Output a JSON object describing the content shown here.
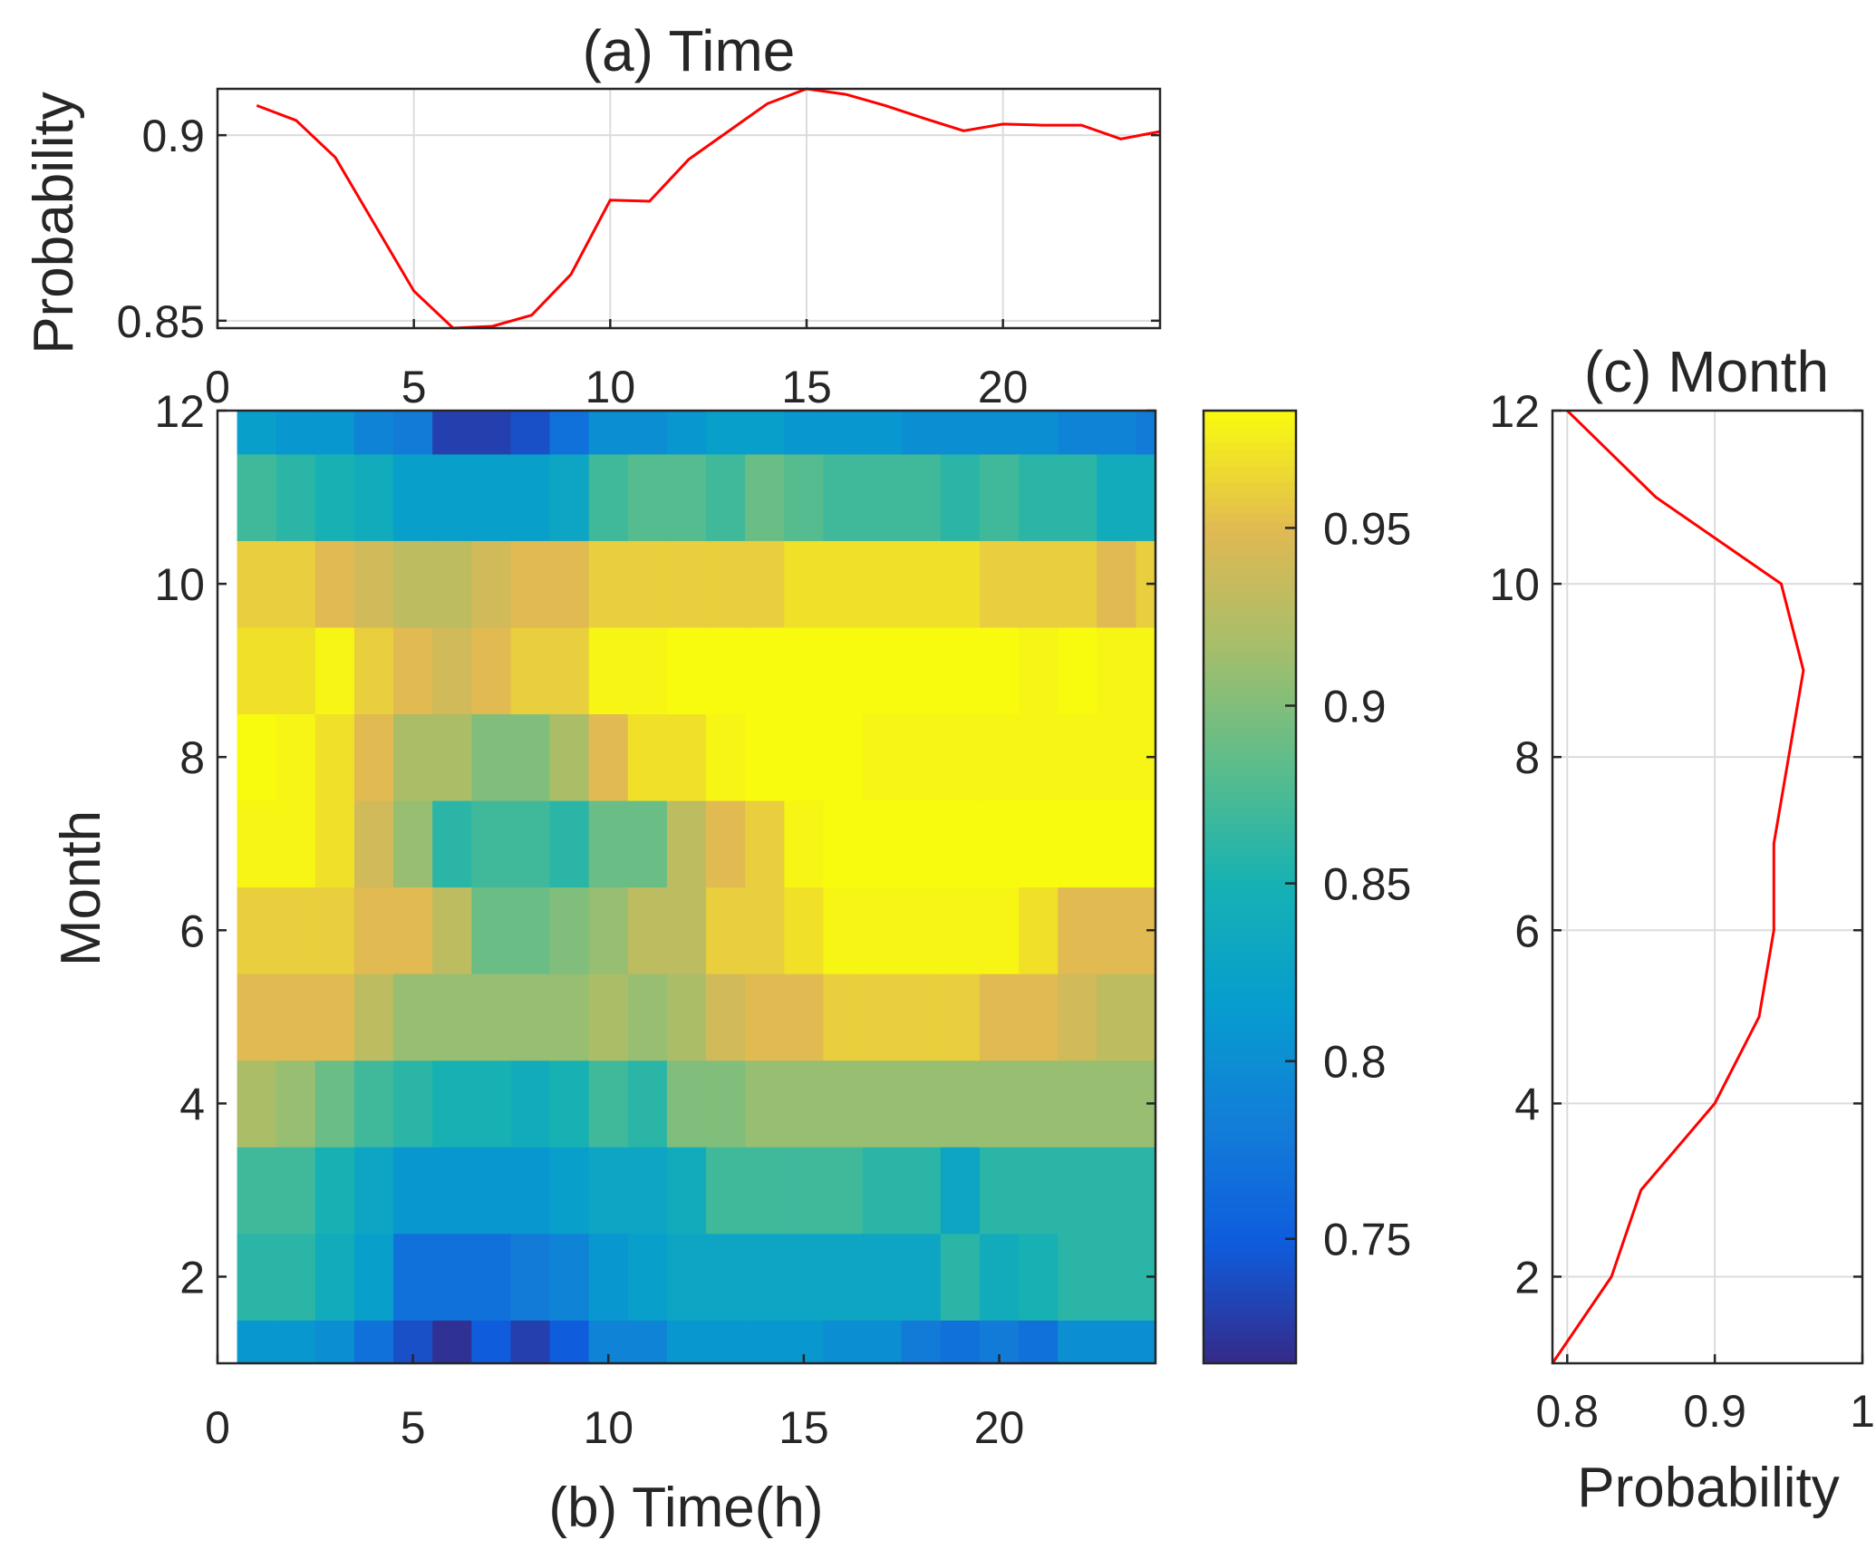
{
  "chart_data": [
    {
      "id": "a",
      "type": "line",
      "title": "(a) Time",
      "xlabel": "",
      "ylabel": "Probability",
      "xlim": [
        0,
        24
      ],
      "ylim": [
        0.848,
        0.9125
      ],
      "xticks": [
        0,
        5,
        10,
        15,
        20
      ],
      "xtick_labels": [
        "0",
        "5",
        "10",
        "15",
        "20"
      ],
      "yticks": [
        0.85,
        0.9
      ],
      "ytick_labels": [
        "0.85",
        "0.9"
      ],
      "grid": true,
      "series": [
        {
          "name": "Time",
          "color": "#ff0000",
          "x": [
            1,
            2,
            3,
            4,
            5,
            6,
            7,
            8,
            9,
            10,
            11,
            12,
            13,
            14,
            15,
            16,
            17,
            18,
            19,
            20,
            21,
            22,
            23,
            24
          ],
          "y": [
            0.908,
            0.904,
            0.894,
            0.876,
            0.858,
            0.848,
            0.8485,
            0.8515,
            0.8625,
            0.8825,
            0.8822,
            0.8935,
            0.901,
            0.9085,
            0.9125,
            0.911,
            0.908,
            0.9045,
            0.9012,
            0.903,
            0.9027,
            0.9027,
            0.899,
            0.901
          ]
        }
      ]
    },
    {
      "id": "b",
      "type": "heatmap",
      "title": "",
      "xlabel": "(b) Time(h)",
      "ylabel": "Month",
      "xlim": [
        0,
        24
      ],
      "ylim": [
        1,
        12
      ],
      "xticks": [
        0,
        5,
        10,
        15,
        20
      ],
      "xtick_labels": [
        "0",
        "5",
        "10",
        "15",
        "20"
      ],
      "yticks": [
        2,
        4,
        6,
        8,
        10,
        12
      ],
      "ytick_labels": [
        "2",
        "4",
        "6",
        "8",
        "10",
        "12"
      ],
      "x": [
        1,
        2,
        3,
        4,
        5,
        6,
        7,
        8,
        9,
        10,
        11,
        12,
        13,
        14,
        15,
        16,
        17,
        18,
        19,
        20,
        21,
        22,
        23,
        24
      ],
      "y": [
        1,
        2,
        3,
        4,
        5,
        6,
        7,
        8,
        9,
        10,
        11,
        12
      ],
      "z": [
        [
          0.81,
          0.81,
          0.8,
          0.77,
          0.74,
          0.72,
          0.75,
          0.73,
          0.75,
          0.79,
          0.79,
          0.81,
          0.81,
          0.81,
          0.81,
          0.8,
          0.8,
          0.78,
          0.77,
          0.78,
          0.77,
          0.8,
          0.8,
          0.8
        ],
        [
          0.86,
          0.86,
          0.84,
          0.82,
          0.77,
          0.77,
          0.77,
          0.78,
          0.79,
          0.81,
          0.82,
          0.83,
          0.83,
          0.83,
          0.83,
          0.83,
          0.83,
          0.83,
          0.86,
          0.84,
          0.85,
          0.86,
          0.86,
          0.86
        ],
        [
          0.87,
          0.87,
          0.85,
          0.83,
          0.81,
          0.81,
          0.81,
          0.81,
          0.82,
          0.83,
          0.83,
          0.84,
          0.87,
          0.87,
          0.87,
          0.87,
          0.86,
          0.86,
          0.83,
          0.86,
          0.86,
          0.86,
          0.86,
          0.86
        ],
        [
          0.92,
          0.91,
          0.89,
          0.87,
          0.86,
          0.85,
          0.85,
          0.84,
          0.85,
          0.87,
          0.86,
          0.9,
          0.9,
          0.91,
          0.91,
          0.91,
          0.91,
          0.91,
          0.91,
          0.91,
          0.91,
          0.91,
          0.91,
          0.91
        ],
        [
          0.95,
          0.95,
          0.95,
          0.93,
          0.91,
          0.91,
          0.91,
          0.91,
          0.91,
          0.92,
          0.91,
          0.92,
          0.94,
          0.95,
          0.95,
          0.96,
          0.96,
          0.96,
          0.96,
          0.95,
          0.95,
          0.94,
          0.93,
          0.93
        ],
        [
          0.96,
          0.96,
          0.96,
          0.95,
          0.95,
          0.93,
          0.89,
          0.89,
          0.9,
          0.91,
          0.93,
          0.93,
          0.96,
          0.96,
          0.97,
          0.98,
          0.98,
          0.98,
          0.98,
          0.98,
          0.97,
          0.95,
          0.95,
          0.95
        ],
        [
          0.98,
          0.98,
          0.97,
          0.94,
          0.91,
          0.86,
          0.87,
          0.87,
          0.86,
          0.89,
          0.89,
          0.93,
          0.95,
          0.96,
          0.98,
          0.99,
          0.99,
          0.99,
          0.99,
          0.995,
          0.995,
          0.995,
          0.995,
          0.995
        ],
        [
          0.985,
          0.98,
          0.97,
          0.95,
          0.92,
          0.92,
          0.9,
          0.9,
          0.92,
          0.95,
          0.97,
          0.97,
          0.98,
          0.99,
          1.0,
          0.99,
          0.98,
          0.98,
          0.98,
          0.98,
          0.98,
          0.98,
          0.98,
          0.98
        ],
        [
          0.97,
          0.97,
          0.98,
          0.96,
          0.95,
          0.94,
          0.95,
          0.96,
          0.96,
          0.98,
          0.98,
          0.99,
          0.99,
          0.99,
          0.99,
          0.99,
          0.99,
          0.99,
          0.99,
          0.99,
          0.98,
          0.99,
          0.98,
          0.98
        ],
        [
          0.96,
          0.96,
          0.95,
          0.94,
          0.93,
          0.93,
          0.94,
          0.95,
          0.95,
          0.96,
          0.96,
          0.96,
          0.96,
          0.96,
          0.97,
          0.97,
          0.97,
          0.97,
          0.97,
          0.96,
          0.96,
          0.96,
          0.95,
          0.96
        ],
        [
          0.87,
          0.86,
          0.85,
          0.84,
          0.82,
          0.82,
          0.82,
          0.82,
          0.83,
          0.87,
          0.88,
          0.88,
          0.87,
          0.89,
          0.88,
          0.87,
          0.87,
          0.87,
          0.86,
          0.87,
          0.86,
          0.86,
          0.84,
          0.84
        ],
        [
          0.82,
          0.81,
          0.81,
          0.79,
          0.78,
          0.73,
          0.73,
          0.74,
          0.77,
          0.8,
          0.8,
          0.81,
          0.82,
          0.82,
          0.81,
          0.81,
          0.81,
          0.8,
          0.8,
          0.8,
          0.8,
          0.79,
          0.79,
          0.78
        ]
      ],
      "colorbar": {
        "colormap": "parula",
        "clim": [
          0.715,
          0.983
        ],
        "ticks": [
          0.75,
          0.8,
          0.85,
          0.9,
          0.95
        ],
        "tick_labels": [
          "0.75",
          "0.8",
          "0.85",
          "0.9",
          "0.95"
        ]
      }
    },
    {
      "id": "c",
      "type": "line",
      "title": "(c) Month",
      "xlabel": "Probability",
      "ylabel": "",
      "xlim": [
        0.79,
        1
      ],
      "ylim": [
        1,
        12
      ],
      "xticks": [
        0.8,
        0.9,
        1
      ],
      "xtick_labels": [
        "0.8",
        "0.9",
        "1"
      ],
      "yticks": [
        2,
        4,
        6,
        8,
        10,
        12
      ],
      "ytick_labels": [
        "2",
        "4",
        "6",
        "8",
        "10",
        "12"
      ],
      "grid": true,
      "series": [
        {
          "name": "Month",
          "color": "#ff0000",
          "x": [
            0.79,
            0.83,
            0.85,
            0.9,
            0.93,
            0.94,
            0.94,
            0.95,
            0.96,
            0.945,
            0.86,
            0.8
          ],
          "y": [
            1,
            2,
            3,
            4,
            5,
            6,
            7,
            8,
            9,
            10,
            11,
            12
          ]
        }
      ]
    }
  ]
}
